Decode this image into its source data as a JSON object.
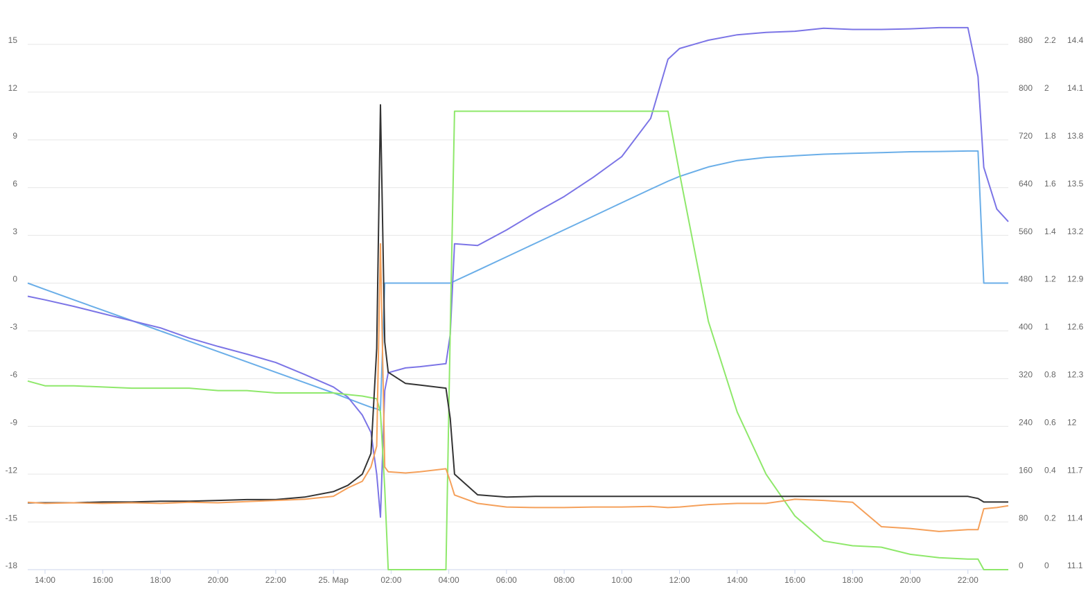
{
  "chart_data": {
    "type": "line",
    "x": [
      13.4,
      14,
      15,
      16,
      17,
      18,
      19,
      20,
      21,
      22,
      23,
      24,
      24.5,
      25,
      25.3,
      25.5,
      25.63,
      25.78,
      25.9,
      26.5,
      27,
      27.9,
      28.05,
      28.2,
      29,
      30,
      31,
      32,
      33,
      34,
      35,
      35.6,
      36,
      37,
      38,
      39,
      40,
      41,
      42,
      43,
      44,
      45,
      46,
      46.35,
      46.55,
      47,
      47.4
    ],
    "xlim": [
      13.4,
      47.4
    ],
    "xticks": [
      {
        "value": 14,
        "label": "14:00"
      },
      {
        "value": 16,
        "label": "16:00"
      },
      {
        "value": 18,
        "label": "18:00"
      },
      {
        "value": 20,
        "label": "20:00"
      },
      {
        "value": 22,
        "label": "22:00"
      },
      {
        "value": 24,
        "label": "25. Мар"
      },
      {
        "value": 26,
        "label": "02:00"
      },
      {
        "value": 28,
        "label": "04:00"
      },
      {
        "value": 30,
        "label": "06:00"
      },
      {
        "value": 32,
        "label": "08:00"
      },
      {
        "value": 34,
        "label": "10:00"
      },
      {
        "value": 36,
        "label": "12:00"
      },
      {
        "value": 38,
        "label": "14:00"
      },
      {
        "value": 40,
        "label": "16:00"
      },
      {
        "value": 42,
        "label": "18:00"
      },
      {
        "value": 44,
        "label": "20:00"
      },
      {
        "value": 46,
        "label": "22:00"
      }
    ],
    "ylim": [
      -18,
      15
    ],
    "yticks": [
      -18,
      -15,
      -12,
      -9,
      -6,
      -3,
      0,
      3,
      6,
      9,
      12,
      15
    ],
    "y2lim": [
      0,
      880
    ],
    "y2ticks": [
      0,
      80,
      160,
      240,
      320,
      400,
      480,
      560,
      640,
      720,
      800,
      880
    ],
    "y3lim": [
      0,
      2.2
    ],
    "y3ticks": [
      0,
      0.2,
      0.4,
      0.6,
      0.8,
      1,
      1.2,
      1.4,
      1.6,
      1.8,
      2,
      2.2
    ],
    "y4lim": [
      11.1,
      14.4
    ],
    "y4ticks": [
      11.1,
      11.4,
      11.7,
      12,
      12.3,
      12.6,
      12.9,
      13.2,
      13.5,
      13.8,
      14.1,
      14.4
    ],
    "grid": true,
    "series": [
      {
        "color": "#6aaee8",
        "axis": "y",
        "values": [
          0,
          -0.4,
          -1.05,
          -1.7,
          -2.35,
          -3.0,
          -3.65,
          -4.3,
          -4.95,
          -5.6,
          -6.25,
          -6.9,
          -7.25,
          -7.6,
          -7.8,
          -7.9,
          -8.0,
          0,
          0,
          0,
          0,
          0,
          0,
          0.13,
          0.8,
          1.65,
          2.5,
          3.35,
          4.2,
          5.05,
          5.9,
          6.4,
          6.7,
          7.3,
          7.7,
          7.9,
          8.0,
          8.1,
          8.15,
          8.2,
          8.25,
          8.27,
          8.3,
          8.3,
          0,
          0,
          0
        ]
      },
      {
        "color": "#7b74e6",
        "axis": "y2",
        "values": [
          458,
          452,
          441,
          429,
          417,
          405,
          388,
          374,
          361,
          347,
          327,
          306,
          289,
          259,
          230,
          160,
          88,
          300,
          330,
          338,
          340,
          345,
          394,
          546,
          543,
          569,
          598,
          625,
          657,
          692,
          756,
          855,
          873,
          887,
          896,
          900,
          902,
          907,
          905,
          905,
          906,
          908,
          908,
          826,
          674,
          604,
          583
        ]
      },
      {
        "color": "#8ee86a",
        "axis": "y3",
        "values": [
          0.79,
          0.77,
          0.77,
          0.765,
          0.76,
          0.76,
          0.76,
          0.75,
          0.75,
          0.74,
          0.74,
          0.74,
          0.733,
          0.727,
          0.72,
          0.716,
          0.66,
          0.34,
          0,
          0,
          0,
          0,
          1.0,
          1.92,
          1.92,
          1.92,
          1.92,
          1.92,
          1.92,
          1.92,
          1.92,
          1.92,
          1.66,
          1.04,
          0.66,
          0.4,
          0.225,
          0.12,
          0.1,
          0.094,
          0.064,
          0.05,
          0.044,
          0.044,
          0,
          0,
          0
        ]
      },
      {
        "color": "#333333",
        "axis": "y4",
        "values": [
          11.52,
          11.52,
          11.52,
          11.525,
          11.525,
          11.53,
          11.53,
          11.535,
          11.54,
          11.54,
          11.556,
          11.59,
          11.63,
          11.7,
          11.83,
          12.49,
          14.02,
          12.53,
          12.34,
          12.27,
          12.26,
          12.24,
          12.05,
          11.7,
          11.57,
          11.556,
          11.56,
          11.56,
          11.56,
          11.56,
          11.56,
          11.56,
          11.56,
          11.56,
          11.56,
          11.56,
          11.56,
          11.56,
          11.56,
          11.56,
          11.56,
          11.56,
          11.56,
          11.547,
          11.525,
          11.525,
          11.525
        ]
      },
      {
        "color": "#f5a05a",
        "axis": "y2",
        "values": [
          113,
          111,
          112,
          111,
          112,
          111,
          113,
          112,
          114,
          116,
          118,
          123,
          137,
          148,
          172,
          207,
          546,
          172,
          164,
          162,
          164,
          169,
          148,
          125,
          111,
          105,
          104,
          104,
          105,
          105,
          106,
          104,
          105,
          109,
          111,
          111,
          118,
          116,
          113,
          72,
          69,
          64,
          67,
          67,
          102,
          104,
          107
        ]
      }
    ]
  }
}
